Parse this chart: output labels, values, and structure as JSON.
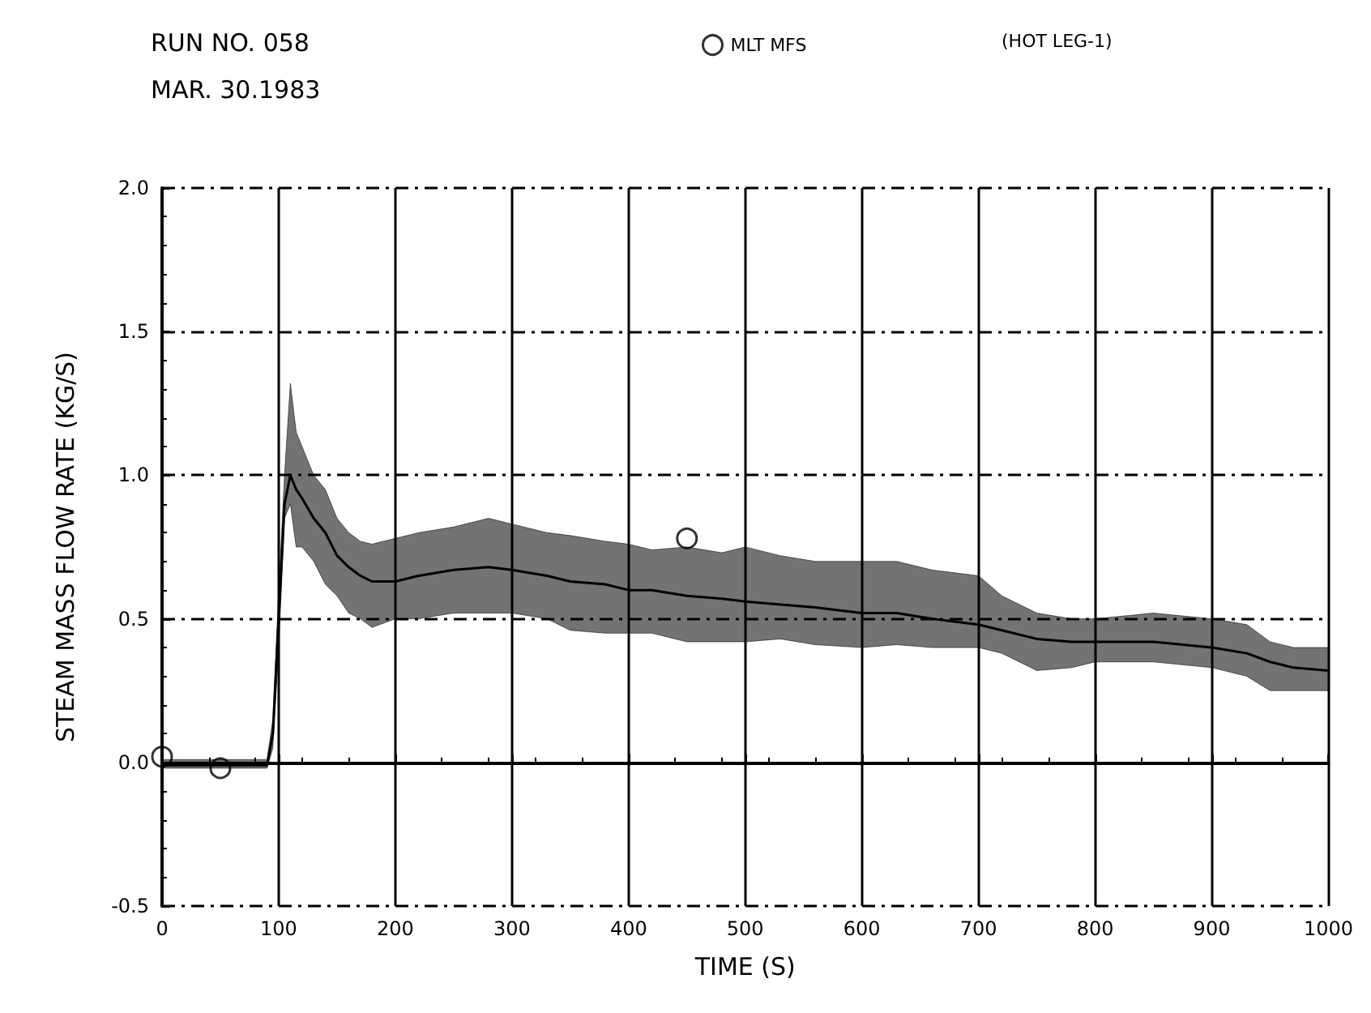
{
  "chart_data": {
    "type": "line",
    "title": "RUN NO. 058",
    "subtitle": "MAR. 30.1983",
    "xlabel": "TIME (S)",
    "ylabel": "STEAM MASS FLOW RATE (KG/S)",
    "annotations": [
      "(HOT LEG-1)"
    ],
    "xlim": [
      0,
      1000
    ],
    "xticks": [
      0,
      100,
      200,
      300,
      400,
      500,
      600,
      700,
      800,
      900,
      1000
    ],
    "ylim": [
      -0.5,
      2.0
    ],
    "yticks": [
      {
        "value": -0.5,
        "label": "-0.5"
      },
      {
        "value": 0,
        "label": "0.0"
      },
      {
        "value": 0.5,
        "label": "0.5"
      },
      {
        "value": 1,
        "label": "1.0"
      },
      {
        "value": 1.5,
        "label": "1.5"
      },
      {
        "value": 2,
        "label": "2.0"
      }
    ],
    "grid": true,
    "legend": "top",
    "series": [
      {
        "color": "#000000",
        "x": [
          0,
          10,
          20,
          30,
          40,
          50,
          60,
          70,
          80,
          90,
          95,
          100,
          105,
          110,
          115,
          120,
          130,
          140,
          150,
          160,
          170,
          180,
          200,
          220,
          250,
          280,
          300,
          330,
          350,
          380,
          400,
          420,
          450,
          480,
          500,
          530,
          560,
          600,
          630,
          660,
          700,
          720,
          750,
          780,
          800,
          850,
          900,
          930,
          950,
          970,
          1000
        ],
        "values": [
          -0.01,
          -0.01,
          -0.01,
          -0.01,
          -0.01,
          -0.01,
          -0.01,
          -0.01,
          -0.01,
          -0.01,
          0.1,
          0.5,
          0.9,
          1.0,
          0.95,
          0.92,
          0.85,
          0.8,
          0.72,
          0.68,
          0.65,
          0.63,
          0.63,
          0.65,
          0.67,
          0.68,
          0.67,
          0.65,
          0.63,
          0.62,
          0.6,
          0.6,
          0.58,
          0.57,
          0.56,
          0.55,
          0.54,
          0.52,
          0.52,
          0.5,
          0.48,
          0.46,
          0.43,
          0.42,
          0.42,
          0.42,
          0.4,
          0.38,
          0.35,
          0.33,
          0.32
        ],
        "lower": [
          -0.02,
          -0.02,
          -0.02,
          -0.02,
          -0.02,
          -0.02,
          -0.02,
          -0.02,
          -0.02,
          -0.02,
          0.05,
          0.4,
          0.85,
          0.9,
          0.75,
          0.75,
          0.7,
          0.62,
          0.58,
          0.52,
          0.5,
          0.47,
          0.5,
          0.5,
          0.52,
          0.52,
          0.52,
          0.5,
          0.46,
          0.45,
          0.45,
          0.45,
          0.42,
          0.42,
          0.42,
          0.43,
          0.41,
          0.4,
          0.41,
          0.4,
          0.4,
          0.38,
          0.32,
          0.33,
          0.35,
          0.35,
          0.33,
          0.3,
          0.25,
          0.25,
          0.25
        ],
        "upper": [
          0.01,
          0.01,
          0.01,
          0.01,
          0.01,
          0.01,
          0.01,
          0.01,
          0.01,
          0.01,
          0.15,
          0.6,
          1.0,
          1.32,
          1.15,
          1.1,
          1.0,
          0.95,
          0.85,
          0.8,
          0.77,
          0.76,
          0.78,
          0.8,
          0.82,
          0.85,
          0.83,
          0.8,
          0.79,
          0.77,
          0.76,
          0.74,
          0.75,
          0.73,
          0.75,
          0.72,
          0.7,
          0.7,
          0.7,
          0.67,
          0.65,
          0.58,
          0.52,
          0.5,
          0.5,
          0.52,
          0.5,
          0.48,
          0.42,
          0.4,
          0.4
        ]
      },
      {
        "type": "scatter",
        "name": "MLT MFS",
        "color": "#000000",
        "marker": "circle",
        "x": [
          0,
          50,
          450
        ],
        "values": [
          0.02,
          -0.02,
          0.78
        ]
      }
    ]
  }
}
